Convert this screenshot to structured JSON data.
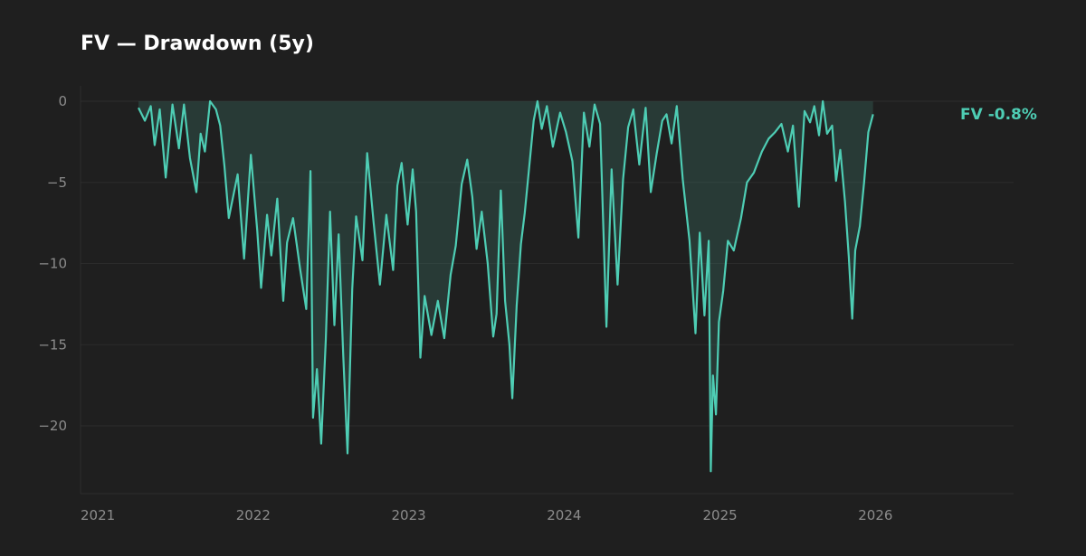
{
  "chart_data": {
    "type": "area",
    "title": "FV — Drawdown (5y)",
    "xlabel": "",
    "ylabel": "",
    "x_ticks": [
      "2021",
      "2022",
      "2023",
      "2024",
      "2025",
      "2026"
    ],
    "y_ticks": [
      "0",
      "−5",
      "−10",
      "−15",
      "−20"
    ],
    "ylim": [
      -24,
      1
    ],
    "xlim": [
      "2021-01-01",
      "2027-01-01"
    ],
    "grid": true,
    "series": [
      {
        "name": "FV",
        "color": "#4ecdb4",
        "end_label": "FV  -0.8%",
        "points": [
          [
            "2021-05-17",
            -0.4
          ],
          [
            "2021-06-01",
            -1.2
          ],
          [
            "2021-06-15",
            -0.3
          ],
          [
            "2021-06-24",
            -2.7
          ],
          [
            "2021-07-06",
            -0.5
          ],
          [
            "2021-07-20",
            -4.7
          ],
          [
            "2021-08-05",
            -0.2
          ],
          [
            "2021-08-20",
            -2.9
          ],
          [
            "2021-09-01",
            -0.2
          ],
          [
            "2021-09-15",
            -3.5
          ],
          [
            "2021-09-30",
            -5.6
          ],
          [
            "2021-10-10",
            -2.0
          ],
          [
            "2021-10-20",
            -3.1
          ],
          [
            "2021-11-01",
            0.0
          ],
          [
            "2021-11-15",
            -0.5
          ],
          [
            "2021-11-25",
            -1.5
          ],
          [
            "2021-12-05",
            -4.0
          ],
          [
            "2021-12-15",
            -7.2
          ],
          [
            "2022-01-05",
            -4.5
          ],
          [
            "2022-01-20",
            -9.7
          ],
          [
            "2022-02-05",
            -3.3
          ],
          [
            "2022-02-20",
            -8.0
          ],
          [
            "2022-03-01",
            -11.5
          ],
          [
            "2022-03-15",
            -7.0
          ],
          [
            "2022-03-25",
            -9.5
          ],
          [
            "2022-04-08",
            -6.0
          ],
          [
            "2022-04-22",
            -12.3
          ],
          [
            "2022-05-01",
            -8.7
          ],
          [
            "2022-05-15",
            -7.2
          ],
          [
            "2022-06-01",
            -10.4
          ],
          [
            "2022-06-15",
            -12.8
          ],
          [
            "2022-06-25",
            -4.3
          ],
          [
            "2022-07-01",
            -19.5
          ],
          [
            "2022-07-10",
            -16.5
          ],
          [
            "2022-07-20",
            -21.1
          ],
          [
            "2022-07-31",
            -14.7
          ],
          [
            "2022-08-10",
            -6.8
          ],
          [
            "2022-08-20",
            -13.8
          ],
          [
            "2022-08-30",
            -8.2
          ],
          [
            "2022-09-10",
            -15.7
          ],
          [
            "2022-09-20",
            -21.7
          ],
          [
            "2022-10-01",
            -11.6
          ],
          [
            "2022-10-10",
            -7.1
          ],
          [
            "2022-10-25",
            -9.8
          ],
          [
            "2022-11-05",
            -3.2
          ],
          [
            "2022-11-20",
            -7.4
          ],
          [
            "2022-12-05",
            -11.3
          ],
          [
            "2022-12-20",
            -7.0
          ],
          [
            "2023-01-05",
            -10.4
          ],
          [
            "2023-01-15",
            -5.2
          ],
          [
            "2023-01-25",
            -3.8
          ],
          [
            "2023-02-08",
            -7.6
          ],
          [
            "2023-02-20",
            -4.2
          ],
          [
            "2023-02-28",
            -6.8
          ],
          [
            "2023-03-10",
            -15.8
          ],
          [
            "2023-03-20",
            -12.0
          ],
          [
            "2023-04-05",
            -14.4
          ],
          [
            "2023-04-20",
            -12.3
          ],
          [
            "2023-05-05",
            -14.6
          ],
          [
            "2023-05-20",
            -10.7
          ],
          [
            "2023-06-01",
            -8.9
          ],
          [
            "2023-06-15",
            -5.1
          ],
          [
            "2023-06-28",
            -3.6
          ],
          [
            "2023-07-10",
            -5.9
          ],
          [
            "2023-07-20",
            -9.1
          ],
          [
            "2023-08-01",
            -6.8
          ],
          [
            "2023-08-15",
            -10.0
          ],
          [
            "2023-08-28",
            -14.5
          ],
          [
            "2023-09-05",
            -13.1
          ],
          [
            "2023-09-15",
            -5.5
          ],
          [
            "2023-09-25",
            -12.3
          ],
          [
            "2023-10-05",
            -15.0
          ],
          [
            "2023-10-12",
            -18.3
          ],
          [
            "2023-10-22",
            -12.6
          ],
          [
            "2023-11-01",
            -8.8
          ],
          [
            "2023-11-10",
            -6.9
          ],
          [
            "2023-11-20",
            -4.2
          ],
          [
            "2023-12-01",
            -1.2
          ],
          [
            "2023-12-10",
            0.0
          ],
          [
            "2023-12-20",
            -1.7
          ],
          [
            "2024-01-01",
            -0.3
          ],
          [
            "2024-01-15",
            -2.8
          ],
          [
            "2024-02-01",
            -0.7
          ],
          [
            "2024-02-15",
            -1.9
          ],
          [
            "2024-03-01",
            -3.7
          ],
          [
            "2024-03-15",
            -8.4
          ],
          [
            "2024-03-28",
            -0.7
          ],
          [
            "2024-04-10",
            -2.8
          ],
          [
            "2024-04-22",
            -0.2
          ],
          [
            "2024-05-05",
            -1.4
          ],
          [
            "2024-05-20",
            -13.9
          ],
          [
            "2024-06-01",
            -4.2
          ],
          [
            "2024-06-15",
            -11.3
          ],
          [
            "2024-06-28",
            -4.8
          ],
          [
            "2024-07-10",
            -1.6
          ],
          [
            "2024-07-22",
            -0.5
          ],
          [
            "2024-08-05",
            -3.9
          ],
          [
            "2024-08-20",
            -0.4
          ],
          [
            "2024-09-01",
            -5.6
          ],
          [
            "2024-09-15",
            -3.2
          ],
          [
            "2024-09-28",
            -1.2
          ],
          [
            "2024-10-08",
            -0.8
          ],
          [
            "2024-10-20",
            -2.6
          ],
          [
            "2024-11-01",
            -0.3
          ],
          [
            "2024-11-15",
            -4.8
          ],
          [
            "2024-12-01",
            -8.6
          ],
          [
            "2024-12-15",
            -14.3
          ],
          [
            "2024-12-25",
            -8.1
          ],
          [
            "2025-01-05",
            -13.2
          ],
          [
            "2025-01-15",
            -8.6
          ],
          [
            "2025-01-20",
            -22.8
          ],
          [
            "2025-01-25",
            -16.9
          ],
          [
            "2025-02-01",
            -19.3
          ],
          [
            "2025-02-08",
            -13.6
          ],
          [
            "2025-02-18",
            -11.7
          ],
          [
            "2025-03-01",
            -8.6
          ],
          [
            "2025-03-15",
            -9.2
          ],
          [
            "2025-04-01",
            -7.2
          ],
          [
            "2025-04-15",
            -5.0
          ],
          [
            "2025-05-01",
            -4.4
          ],
          [
            "2025-05-20",
            -3.1
          ],
          [
            "2025-06-05",
            -2.3
          ],
          [
            "2025-06-20",
            -1.9
          ],
          [
            "2025-07-05",
            -1.4
          ],
          [
            "2025-07-20",
            -3.1
          ],
          [
            "2025-08-01",
            -1.5
          ],
          [
            "2025-08-15",
            -6.5
          ],
          [
            "2025-08-28",
            -0.6
          ],
          [
            "2025-09-10",
            -1.3
          ],
          [
            "2025-09-20",
            -0.3
          ],
          [
            "2025-10-01",
            -2.1
          ],
          [
            "2025-10-10",
            0.0
          ],
          [
            "2025-10-20",
            -2.0
          ],
          [
            "2025-11-01",
            -1.5
          ],
          [
            "2025-11-10",
            -4.9
          ],
          [
            "2025-11-20",
            -3.0
          ],
          [
            "2025-12-01",
            -6.2
          ],
          [
            "2025-12-10",
            -9.6
          ],
          [
            "2025-12-18",
            -13.4
          ],
          [
            "2025-12-25",
            -9.2
          ],
          [
            "2026-01-05",
            -7.7
          ],
          [
            "2026-01-15",
            -5.0
          ],
          [
            "2026-01-25",
            -1.9
          ],
          [
            "2026-02-05",
            -0.8
          ]
        ]
      }
    ]
  }
}
